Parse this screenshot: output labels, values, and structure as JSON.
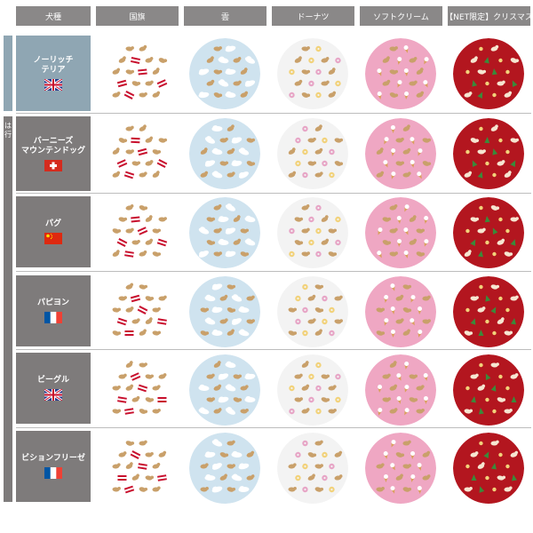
{
  "columns": [
    {
      "label": "犬種"
    },
    {
      "label": "国旗"
    },
    {
      "label": "雲"
    },
    {
      "label": "ドーナツ"
    },
    {
      "label": "ソフトクリーム"
    },
    {
      "label": "【NET限定】クリスマス"
    }
  ],
  "sidebar_label": "は行",
  "rows": [
    {
      "name_lines": [
        "ノーリッチ",
        "テリア"
      ],
      "flag": "uk",
      "group": "blue"
    },
    {
      "name_lines": [
        "バーニーズ",
        "マウンテンドッグ"
      ],
      "flag": "swiss",
      "group": "gray"
    },
    {
      "name_lines": [
        "パグ"
      ],
      "flag": "china",
      "group": "gray"
    },
    {
      "name_lines": [
        "パピヨン"
      ],
      "flag": "france",
      "group": "gray"
    },
    {
      "name_lines": [
        "ビーグル"
      ],
      "flag": "uk",
      "group": "gray"
    },
    {
      "name_lines": [
        "ビションフリーゼ"
      ],
      "flag": "france",
      "group": "gray"
    }
  ],
  "patterns": [
    {
      "name": "flag",
      "background": "#ffffff"
    },
    {
      "name": "cloud",
      "background": "#cfe3ef"
    },
    {
      "name": "donut",
      "background": "#f3f3f3"
    },
    {
      "name": "softcream",
      "background": "#efa7c3"
    },
    {
      "name": "christmas",
      "background": "#b3161f"
    }
  ],
  "colors": {
    "header": "#8a8888",
    "row_blue": "#8fa6b3",
    "row_gray": "#7e7b7b"
  }
}
